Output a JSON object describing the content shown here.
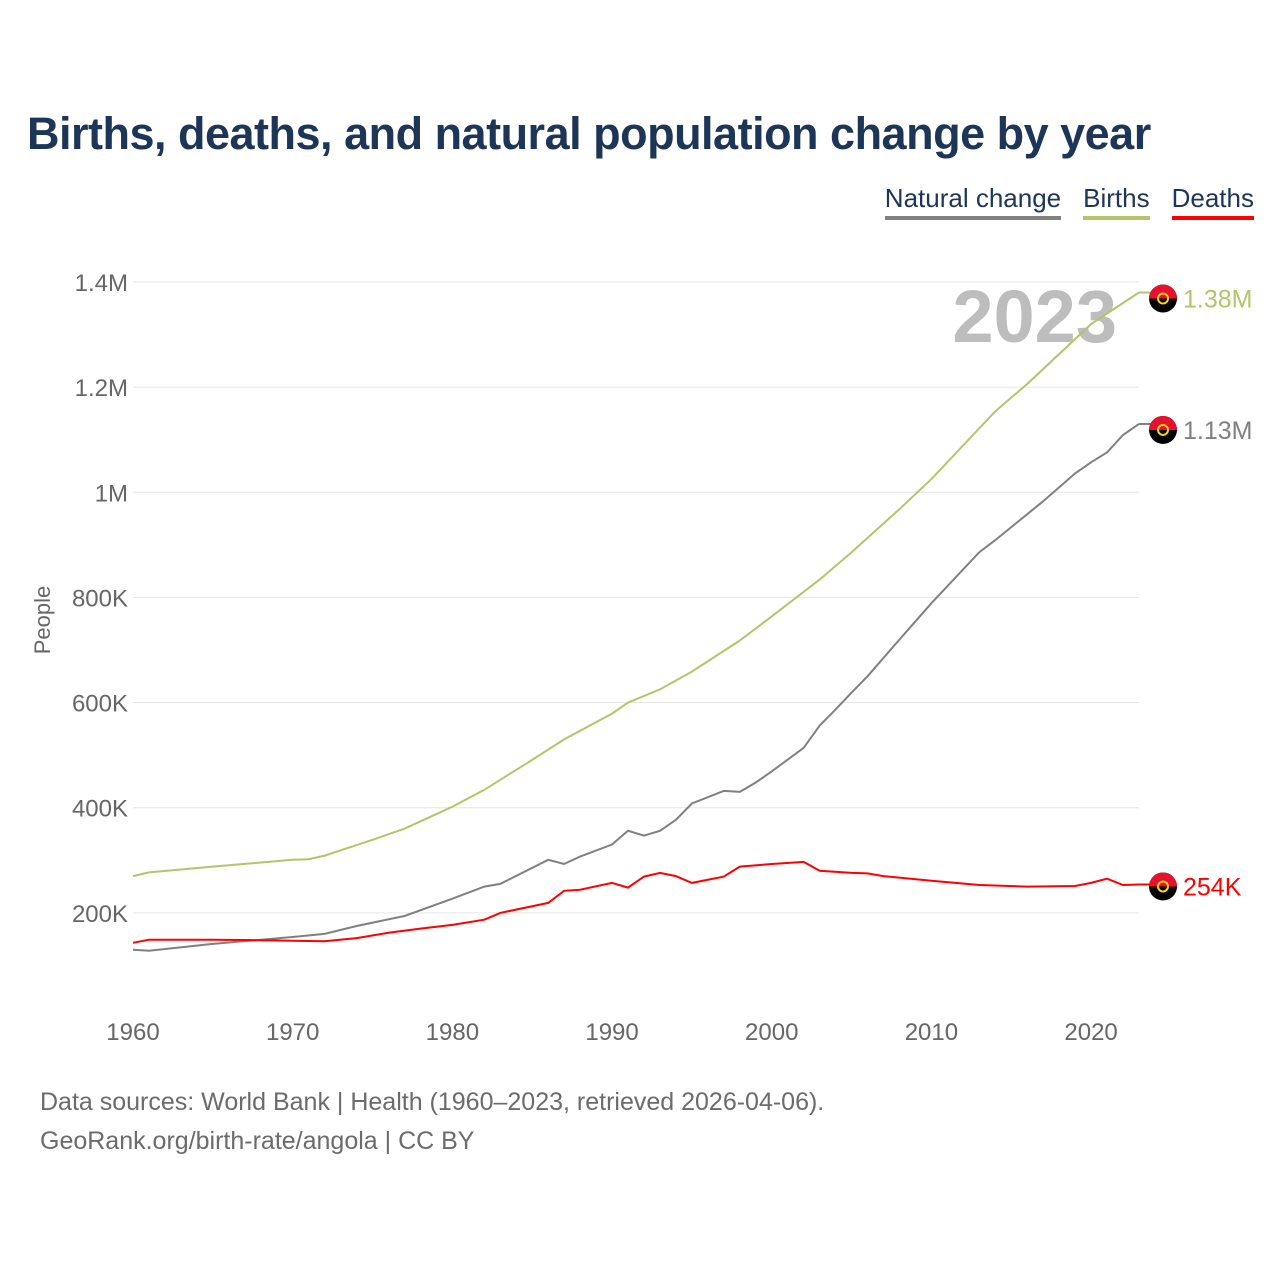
{
  "chart_data": {
    "type": "line",
    "title": "Births, deaths, and natural population change by year",
    "ylabel": "People",
    "xlabel": "",
    "xlim": [
      1960,
      2023
    ],
    "ylim": [
      0,
      1400000
    ],
    "x_ticks": [
      1960,
      1970,
      1980,
      1990,
      2000,
      2010,
      2020
    ],
    "x_tick_labels": [
      "1960",
      "1970",
      "1980",
      "1990",
      "2000",
      "2010",
      "2020"
    ],
    "y_ticks": [
      200000,
      400000,
      600000,
      800000,
      1000000,
      1200000,
      1400000
    ],
    "y_tick_labels": [
      "200K",
      "400K",
      "600K",
      "800K",
      "1M",
      "1.2M",
      "1.4M"
    ],
    "grid": true,
    "legend_position": "top-right",
    "year_label": "2023",
    "series": [
      {
        "name": "Natural change",
        "color": "#808080",
        "end_label": "1.13M",
        "points": [
          [
            1960,
            130000
          ],
          [
            1961,
            128000
          ],
          [
            1965,
            141000
          ],
          [
            1970,
            154000
          ],
          [
            1972,
            160000
          ],
          [
            1974,
            175000
          ],
          [
            1977,
            194000
          ],
          [
            1980,
            227000
          ],
          [
            1982,
            250000
          ],
          [
            1983,
            255000
          ],
          [
            1986,
            301000
          ],
          [
            1987,
            293000
          ],
          [
            1988,
            307000
          ],
          [
            1990,
            330000
          ],
          [
            1991,
            356000
          ],
          [
            1992,
            347000
          ],
          [
            1993,
            356000
          ],
          [
            1994,
            377000
          ],
          [
            1995,
            408000
          ],
          [
            1997,
            432000
          ],
          [
            1998,
            430000
          ],
          [
            1999,
            448000
          ],
          [
            2000,
            469000
          ],
          [
            2002,
            514000
          ],
          [
            2003,
            556000
          ],
          [
            2004,
            587000
          ],
          [
            2005,
            619000
          ],
          [
            2006,
            650000
          ],
          [
            2008,
            720000
          ],
          [
            2010,
            789000
          ],
          [
            2013,
            886000
          ],
          [
            2014,
            909000
          ],
          [
            2017,
            983000
          ],
          [
            2019,
            1036000
          ],
          [
            2020,
            1057000
          ],
          [
            2021,
            1076000
          ],
          [
            2022,
            1109000
          ],
          [
            2023,
            1130000
          ]
        ]
      },
      {
        "name": "Births",
        "color": "#b5c46a",
        "end_label": "1.38M",
        "points": [
          [
            1960,
            270000
          ],
          [
            1961,
            277000
          ],
          [
            1965,
            288000
          ],
          [
            1970,
            301000
          ],
          [
            1971,
            302000
          ],
          [
            1972,
            309000
          ],
          [
            1975,
            339000
          ],
          [
            1977,
            360000
          ],
          [
            1980,
            402000
          ],
          [
            1982,
            434000
          ],
          [
            1985,
            491000
          ],
          [
            1987,
            530000
          ],
          [
            1990,
            579000
          ],
          [
            1991,
            600000
          ],
          [
            1993,
            625000
          ],
          [
            1995,
            659000
          ],
          [
            1998,
            718000
          ],
          [
            2000,
            764000
          ],
          [
            2003,
            834000
          ],
          [
            2005,
            886000
          ],
          [
            2008,
            968000
          ],
          [
            2010,
            1025000
          ],
          [
            2014,
            1154000
          ],
          [
            2016,
            1206000
          ],
          [
            2020,
            1320000
          ],
          [
            2023,
            1380000
          ]
        ]
      },
      {
        "name": "Deaths",
        "color": "#ff0000",
        "end_label": "254K",
        "points": [
          [
            1960,
            143000
          ],
          [
            1961,
            149000
          ],
          [
            1965,
            149000
          ],
          [
            1968,
            148000
          ],
          [
            1970,
            147000
          ],
          [
            1972,
            146000
          ],
          [
            1974,
            152000
          ],
          [
            1976,
            162000
          ],
          [
            1978,
            170000
          ],
          [
            1980,
            177000
          ],
          [
            1982,
            187000
          ],
          [
            1983,
            200000
          ],
          [
            1986,
            219000
          ],
          [
            1987,
            242000
          ],
          [
            1988,
            244000
          ],
          [
            1990,
            257000
          ],
          [
            1991,
            248000
          ],
          [
            1992,
            269000
          ],
          [
            1993,
            276000
          ],
          [
            1994,
            270000
          ],
          [
            1995,
            257000
          ],
          [
            1997,
            269000
          ],
          [
            1998,
            288000
          ],
          [
            2000,
            293000
          ],
          [
            2002,
            297000
          ],
          [
            2003,
            280000
          ],
          [
            2005,
            276000
          ],
          [
            2006,
            275000
          ],
          [
            2007,
            270000
          ],
          [
            2010,
            261000
          ],
          [
            2013,
            253000
          ],
          [
            2016,
            250000
          ],
          [
            2019,
            251000
          ],
          [
            2020,
            257000
          ],
          [
            2021,
            265000
          ],
          [
            2022,
            253000
          ],
          [
            2023,
            254000
          ]
        ]
      }
    ]
  },
  "footer": {
    "line1": "Data sources: World Bank | Health (1960–2023, retrieved 2026-04-06).",
    "line2": "GeoRank.org/birth-rate/angola | CC BY"
  }
}
